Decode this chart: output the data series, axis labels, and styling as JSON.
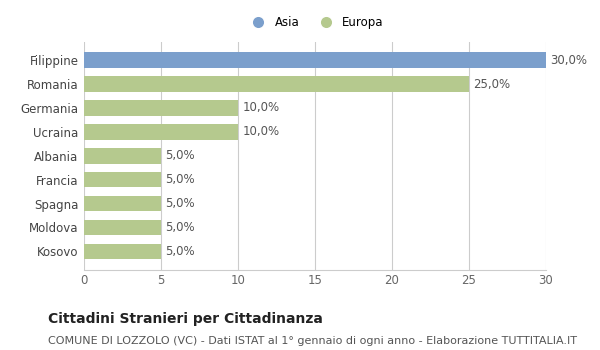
{
  "categories": [
    "Kosovo",
    "Moldova",
    "Spagna",
    "Francia",
    "Albania",
    "Ucraina",
    "Germania",
    "Romania",
    "Filippine"
  ],
  "values": [
    5.0,
    5.0,
    5.0,
    5.0,
    5.0,
    10.0,
    10.0,
    25.0,
    30.0
  ],
  "colors": [
    "#b5c98e",
    "#b5c98e",
    "#b5c98e",
    "#b5c98e",
    "#b5c98e",
    "#b5c98e",
    "#b5c98e",
    "#b5c98e",
    "#7b9fcc"
  ],
  "continent_labels": [
    "Asia",
    "Europa"
  ],
  "continent_colors": [
    "#7b9fcc",
    "#b5c98e"
  ],
  "xlim": [
    0,
    30
  ],
  "xticks": [
    0,
    5,
    10,
    15,
    20,
    25,
    30
  ],
  "title": "Cittadini Stranieri per Cittadinanza",
  "subtitle": "COMUNE DI LOZZOLO (VC) - Dati ISTAT al 1° gennaio di ogni anno - Elaborazione TUTTITALIA.IT",
  "background_color": "#ffffff",
  "plot_bg_color": "#f5f5f5",
  "bar_label_values": [
    "5,0%",
    "5,0%",
    "5,0%",
    "5,0%",
    "5,0%",
    "10,0%",
    "10,0%",
    "25,0%",
    "30,0%"
  ],
  "grid_color": "#ffffff",
  "grid_line_color": "#cccccc",
  "title_fontsize": 10,
  "subtitle_fontsize": 8,
  "tick_fontsize": 8.5,
  "label_fontsize": 8.5
}
